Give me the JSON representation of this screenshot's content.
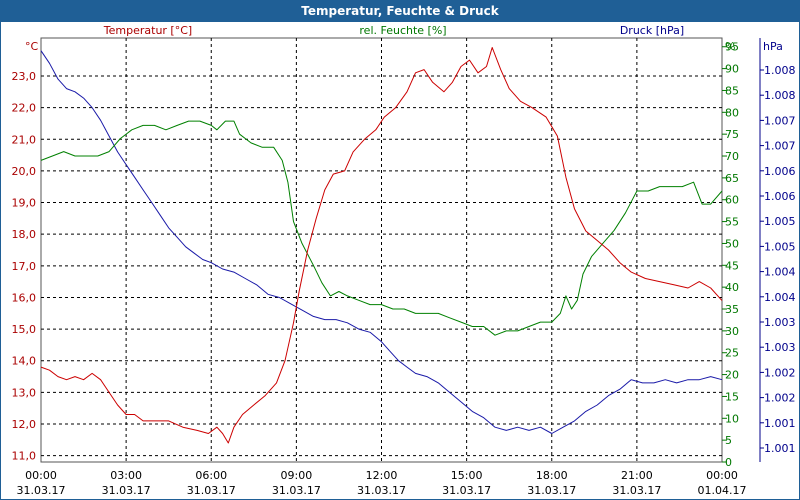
{
  "window": {
    "title": "Temperatur, Feuchte & Druck"
  },
  "chart_data": {
    "type": "line",
    "title": "Temperatur, Feuchte & Druck",
    "grid": true,
    "x": {
      "tick_times": [
        "00:00",
        "03:00",
        "06:00",
        "09:00",
        "12:00",
        "15:00",
        "18:00",
        "21:00",
        "00:00"
      ],
      "tick_dates": [
        "31.03.17",
        "31.03.17",
        "31.03.17",
        "31.03.17",
        "31.03.17",
        "31.03.17",
        "31.03.17",
        "31.03.17",
        "01.04.17"
      ],
      "range_hours": [
        0,
        24
      ]
    },
    "axes": {
      "temperature": {
        "label": "Temperatur [°C]",
        "unit": "°C",
        "color": "#aa0000",
        "range": [
          10.8,
          24.2
        ],
        "ticks": [
          "11,0",
          "12,0",
          "13,0",
          "14,0",
          "15,0",
          "16,0",
          "17,0",
          "18,0",
          "19,0",
          "20,0",
          "21,0",
          "22,0",
          "23,0"
        ]
      },
      "humidity": {
        "label": "rel. Feuchte [%]",
        "unit": "%",
        "color": "#007700",
        "range": [
          0,
          97
        ],
        "ticks": [
          "0",
          "5",
          "10",
          "15",
          "20",
          "25",
          "30",
          "35",
          "40",
          "45",
          "50",
          "55",
          "60",
          "65",
          "70",
          "75",
          "80",
          "85",
          "90",
          "95"
        ]
      },
      "pressure": {
        "label": "Druck [hPa]",
        "unit": "hPa",
        "color": "#00008b",
        "ticks": [
          "1.001",
          "1.001",
          "1.002",
          "1.002",
          "1.003",
          "1.003",
          "1.004",
          "1.004",
          "1.005",
          "1.005",
          "1.006",
          "1.006",
          "1.007",
          "1.007",
          "1.008",
          "1.008"
        ]
      }
    },
    "series": [
      {
        "name": "Temperatur [°C]",
        "axis": "temperature",
        "color": "#cc0000",
        "points": [
          [
            0,
            13.8
          ],
          [
            0.3,
            13.7
          ],
          [
            0.6,
            13.5
          ],
          [
            0.9,
            13.4
          ],
          [
            1.2,
            13.5
          ],
          [
            1.5,
            13.4
          ],
          [
            1.8,
            13.6
          ],
          [
            2.1,
            13.4
          ],
          [
            2.4,
            13.0
          ],
          [
            2.7,
            12.6
          ],
          [
            3.0,
            12.3
          ],
          [
            3.3,
            12.3
          ],
          [
            3.6,
            12.1
          ],
          [
            4.0,
            12.1
          ],
          [
            4.5,
            12.1
          ],
          [
            5.0,
            11.9
          ],
          [
            5.5,
            11.8
          ],
          [
            5.9,
            11.7
          ],
          [
            6.2,
            11.9
          ],
          [
            6.4,
            11.7
          ],
          [
            6.6,
            11.4
          ],
          [
            6.8,
            11.9
          ],
          [
            7.1,
            12.3
          ],
          [
            7.5,
            12.6
          ],
          [
            7.9,
            12.9
          ],
          [
            8.3,
            13.3
          ],
          [
            8.6,
            14.0
          ],
          [
            8.9,
            15.2
          ],
          [
            9.1,
            16.2
          ],
          [
            9.4,
            17.5
          ],
          [
            9.7,
            18.5
          ],
          [
            10.0,
            19.4
          ],
          [
            10.3,
            19.9
          ],
          [
            10.7,
            20.0
          ],
          [
            11.0,
            20.6
          ],
          [
            11.4,
            21.0
          ],
          [
            11.8,
            21.3
          ],
          [
            12.1,
            21.7
          ],
          [
            12.5,
            22.0
          ],
          [
            12.9,
            22.5
          ],
          [
            13.2,
            23.1
          ],
          [
            13.5,
            23.2
          ],
          [
            13.8,
            22.8
          ],
          [
            14.2,
            22.5
          ],
          [
            14.5,
            22.8
          ],
          [
            14.8,
            23.3
          ],
          [
            15.1,
            23.5
          ],
          [
            15.4,
            23.1
          ],
          [
            15.7,
            23.3
          ],
          [
            15.9,
            23.9
          ],
          [
            16.2,
            23.2
          ],
          [
            16.5,
            22.6
          ],
          [
            16.9,
            22.2
          ],
          [
            17.3,
            22.0
          ],
          [
            17.8,
            21.7
          ],
          [
            18.2,
            21.1
          ],
          [
            18.5,
            19.8
          ],
          [
            18.8,
            18.8
          ],
          [
            19.2,
            18.1
          ],
          [
            19.6,
            17.8
          ],
          [
            20.0,
            17.5
          ],
          [
            20.4,
            17.1
          ],
          [
            20.8,
            16.8
          ],
          [
            21.3,
            16.6
          ],
          [
            21.8,
            16.5
          ],
          [
            22.3,
            16.4
          ],
          [
            22.8,
            16.3
          ],
          [
            23.2,
            16.5
          ],
          [
            23.6,
            16.3
          ],
          [
            24.0,
            15.9
          ]
        ]
      },
      {
        "name": "rel. Feuchte [%]",
        "axis": "humidity",
        "color": "#008000",
        "points": [
          [
            0,
            69
          ],
          [
            0.4,
            70
          ],
          [
            0.8,
            71
          ],
          [
            1.2,
            70
          ],
          [
            1.6,
            70
          ],
          [
            2.0,
            70
          ],
          [
            2.4,
            71
          ],
          [
            2.8,
            74
          ],
          [
            3.2,
            76
          ],
          [
            3.6,
            77
          ],
          [
            4.0,
            77
          ],
          [
            4.4,
            76
          ],
          [
            4.8,
            77
          ],
          [
            5.2,
            78
          ],
          [
            5.6,
            78
          ],
          [
            6.0,
            77
          ],
          [
            6.2,
            76
          ],
          [
            6.5,
            78
          ],
          [
            6.8,
            78
          ],
          [
            7.0,
            75
          ],
          [
            7.4,
            73
          ],
          [
            7.8,
            72
          ],
          [
            8.2,
            72
          ],
          [
            8.5,
            69
          ],
          [
            8.7,
            64
          ],
          [
            8.9,
            55
          ],
          [
            9.2,
            50
          ],
          [
            9.6,
            45
          ],
          [
            9.9,
            41
          ],
          [
            10.2,
            38
          ],
          [
            10.5,
            39
          ],
          [
            10.8,
            38
          ],
          [
            11.2,
            37
          ],
          [
            11.6,
            36
          ],
          [
            12.0,
            36
          ],
          [
            12.4,
            35
          ],
          [
            12.8,
            35
          ],
          [
            13.2,
            34
          ],
          [
            13.6,
            34
          ],
          [
            14.0,
            34
          ],
          [
            14.4,
            33
          ],
          [
            14.8,
            32
          ],
          [
            15.2,
            31
          ],
          [
            15.6,
            31
          ],
          [
            16.0,
            29
          ],
          [
            16.4,
            30
          ],
          [
            16.8,
            30
          ],
          [
            17.2,
            31
          ],
          [
            17.6,
            32
          ],
          [
            18.0,
            32
          ],
          [
            18.3,
            34
          ],
          [
            18.5,
            38
          ],
          [
            18.7,
            35
          ],
          [
            18.9,
            37
          ],
          [
            19.1,
            43
          ],
          [
            19.4,
            47
          ],
          [
            19.8,
            50
          ],
          [
            20.2,
            53
          ],
          [
            20.6,
            57
          ],
          [
            21.0,
            62
          ],
          [
            21.4,
            62
          ],
          [
            21.8,
            63
          ],
          [
            22.2,
            63
          ],
          [
            22.6,
            63
          ],
          [
            23.0,
            64
          ],
          [
            23.3,
            59
          ],
          [
            23.6,
            59
          ],
          [
            24.0,
            62
          ]
        ]
      },
      {
        "name": "Druck [hPa]",
        "axis": "pressure",
        "color": "#1a1aa8",
        "points": [
          [
            0,
            23.8
          ],
          [
            0.3,
            23.4
          ],
          [
            0.6,
            22.9
          ],
          [
            0.9,
            22.6
          ],
          [
            1.2,
            22.5
          ],
          [
            1.5,
            22.3
          ],
          [
            1.8,
            22.0
          ],
          [
            2.1,
            21.6
          ],
          [
            2.4,
            21.1
          ],
          [
            2.7,
            20.6
          ],
          [
            3.0,
            20.2
          ],
          [
            3.3,
            19.8
          ],
          [
            3.6,
            19.4
          ],
          [
            3.9,
            19.0
          ],
          [
            4.2,
            18.6
          ],
          [
            4.5,
            18.2
          ],
          [
            4.8,
            17.9
          ],
          [
            5.1,
            17.6
          ],
          [
            5.4,
            17.4
          ],
          [
            5.7,
            17.2
          ],
          [
            6.0,
            17.1
          ],
          [
            6.4,
            16.9
          ],
          [
            6.8,
            16.8
          ],
          [
            7.2,
            16.6
          ],
          [
            7.6,
            16.4
          ],
          [
            8.0,
            16.1
          ],
          [
            8.4,
            16.0
          ],
          [
            8.8,
            15.8
          ],
          [
            9.2,
            15.6
          ],
          [
            9.6,
            15.4
          ],
          [
            10.0,
            15.3
          ],
          [
            10.4,
            15.3
          ],
          [
            10.8,
            15.2
          ],
          [
            11.2,
            15.0
          ],
          [
            11.6,
            14.9
          ],
          [
            12.0,
            14.6
          ],
          [
            12.3,
            14.3
          ],
          [
            12.6,
            14.0
          ],
          [
            12.9,
            13.8
          ],
          [
            13.2,
            13.6
          ],
          [
            13.6,
            13.5
          ],
          [
            14.0,
            13.3
          ],
          [
            14.4,
            13.0
          ],
          [
            14.8,
            12.7
          ],
          [
            15.2,
            12.4
          ],
          [
            15.6,
            12.2
          ],
          [
            16.0,
            11.9
          ],
          [
            16.4,
            11.8
          ],
          [
            16.8,
            11.9
          ],
          [
            17.2,
            11.8
          ],
          [
            17.6,
            11.9
          ],
          [
            18.0,
            11.7
          ],
          [
            18.4,
            11.9
          ],
          [
            18.8,
            12.1
          ],
          [
            19.2,
            12.4
          ],
          [
            19.6,
            12.6
          ],
          [
            20.0,
            12.9
          ],
          [
            20.4,
            13.1
          ],
          [
            20.8,
            13.4
          ],
          [
            21.2,
            13.3
          ],
          [
            21.6,
            13.3
          ],
          [
            22.0,
            13.4
          ],
          [
            22.4,
            13.3
          ],
          [
            22.8,
            13.4
          ],
          [
            23.2,
            13.4
          ],
          [
            23.6,
            13.5
          ],
          [
            24.0,
            13.4
          ]
        ]
      }
    ]
  }
}
